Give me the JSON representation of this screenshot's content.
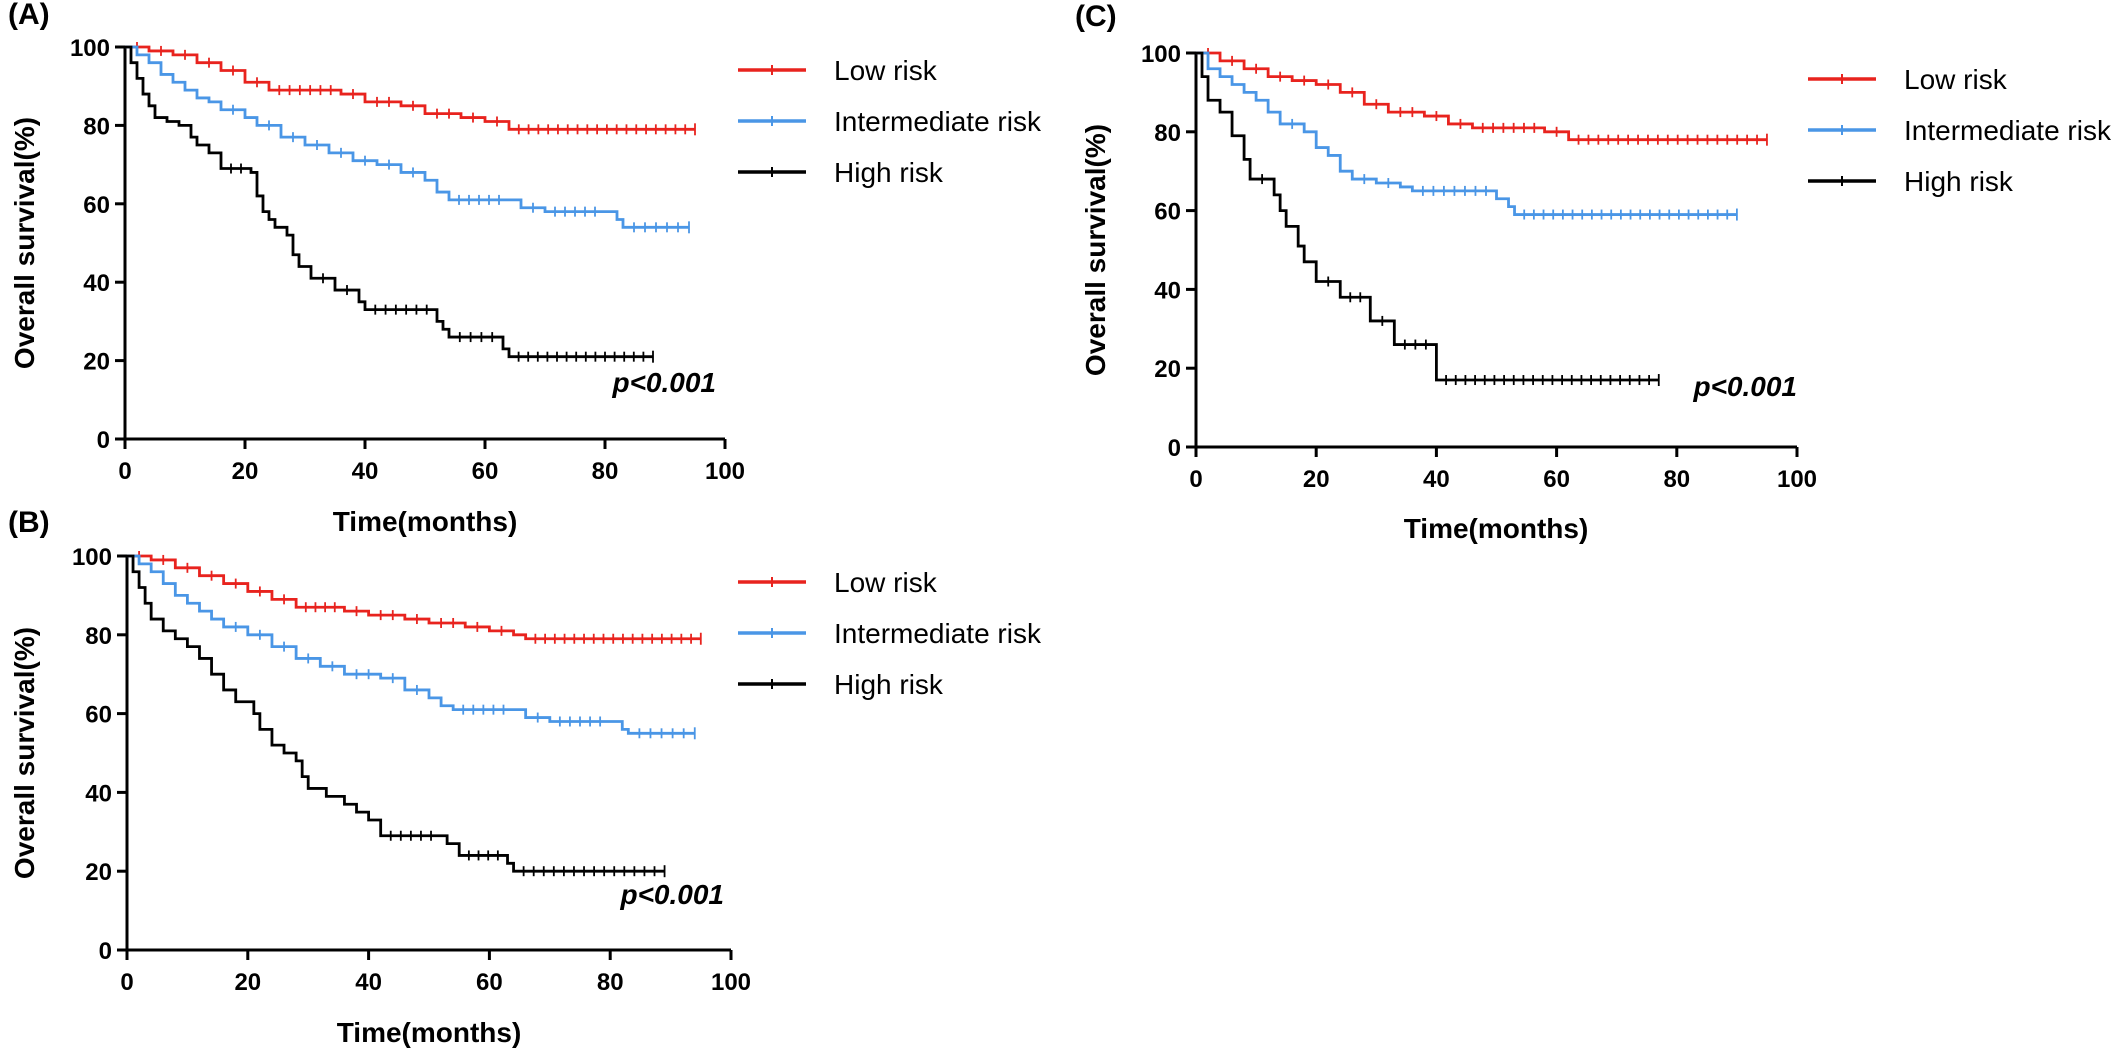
{
  "chart_data": [
    {
      "panel": "(A)",
      "type": "line",
      "xlabel": "Time(months)",
      "ylabel": "Overall survival(%)",
      "xlim": [
        0,
        100
      ],
      "ylim": [
        0,
        100
      ],
      "xticks": [
        "0",
        "20",
        "40",
        "60",
        "80",
        "100"
      ],
      "yticks": [
        "0",
        "20",
        "40",
        "60",
        "80",
        "100"
      ],
      "annotation": "p<0.001",
      "series": [
        {
          "name": "Low risk",
          "color": "#e8231e",
          "points": [
            [
              0,
              100
            ],
            [
              4,
              99
            ],
            [
              8,
              98
            ],
            [
              12,
              96
            ],
            [
              16,
              94
            ],
            [
              20,
              91
            ],
            [
              24,
              89
            ],
            [
              36,
              88
            ],
            [
              40,
              86
            ],
            [
              46,
              85
            ],
            [
              50,
              83
            ],
            [
              56,
              82
            ],
            [
              60,
              81
            ],
            [
              64,
              79
            ],
            [
              95,
              79
            ]
          ]
        },
        {
          "name": "Intermediate risk",
          "color": "#4a96e6",
          "points": [
            [
              0,
              100
            ],
            [
              2,
              98
            ],
            [
              4,
              96
            ],
            [
              6,
              93
            ],
            [
              8,
              91
            ],
            [
              10,
              89
            ],
            [
              12,
              87
            ],
            [
              14,
              86
            ],
            [
              16,
              84
            ],
            [
              20,
              82
            ],
            [
              22,
              80
            ],
            [
              26,
              77
            ],
            [
              30,
              75
            ],
            [
              34,
              73
            ],
            [
              38,
              71
            ],
            [
              42,
              70
            ],
            [
              46,
              68
            ],
            [
              50,
              66
            ],
            [
              52,
              63
            ],
            [
              54,
              61
            ],
            [
              64,
              61
            ],
            [
              66,
              59
            ],
            [
              70,
              58
            ],
            [
              80,
              58
            ],
            [
              82,
              56
            ],
            [
              83,
              54
            ],
            [
              94,
              54
            ]
          ]
        },
        {
          "name": "High risk",
          "color": "#000000",
          "points": [
            [
              0,
              100
            ],
            [
              1,
              96
            ],
            [
              2,
              92
            ],
            [
              3,
              88
            ],
            [
              4,
              85
            ],
            [
              5,
              82
            ],
            [
              7,
              81
            ],
            [
              9,
              80
            ],
            [
              11,
              77
            ],
            [
              12,
              75
            ],
            [
              14,
              73
            ],
            [
              16,
              69
            ],
            [
              21,
              68
            ],
            [
              22,
              62
            ],
            [
              23,
              58
            ],
            [
              24,
              56
            ],
            [
              25,
              54
            ],
            [
              27,
              52
            ],
            [
              28,
              47
            ],
            [
              29,
              44
            ],
            [
              31,
              41
            ],
            [
              35,
              38
            ],
            [
              39,
              35
            ],
            [
              40,
              33
            ],
            [
              52,
              30
            ],
            [
              53,
              28
            ],
            [
              54,
              26
            ],
            [
              63,
              23
            ],
            [
              64,
              21
            ],
            [
              88,
              21
            ]
          ]
        }
      ]
    },
    {
      "panel": "(B)",
      "type": "line",
      "xlabel": "Time(months)",
      "ylabel": "Overall survival(%)",
      "xlim": [
        0,
        100
      ],
      "ylim": [
        0,
        100
      ],
      "xticks": [
        "0",
        "20",
        "40",
        "60",
        "80",
        "100"
      ],
      "yticks": [
        "0",
        "20",
        "40",
        "60",
        "80",
        "100"
      ],
      "annotation": "p<0.001",
      "series": [
        {
          "name": "Low risk",
          "color": "#e8231e",
          "points": [
            [
              0,
              100
            ],
            [
              4,
              99
            ],
            [
              8,
              97
            ],
            [
              12,
              95
            ],
            [
              16,
              93
            ],
            [
              20,
              91
            ],
            [
              24,
              89
            ],
            [
              28,
              87
            ],
            [
              36,
              86
            ],
            [
              40,
              85
            ],
            [
              46,
              84
            ],
            [
              50,
              83
            ],
            [
              56,
              82
            ],
            [
              60,
              81
            ],
            [
              64,
              80
            ],
            [
              66,
              79
            ],
            [
              95,
              79
            ]
          ]
        },
        {
          "name": "Intermediate risk",
          "color": "#4a96e6",
          "points": [
            [
              0,
              100
            ],
            [
              2,
              98
            ],
            [
              4,
              96
            ],
            [
              6,
              93
            ],
            [
              8,
              90
            ],
            [
              10,
              88
            ],
            [
              12,
              86
            ],
            [
              14,
              84
            ],
            [
              16,
              82
            ],
            [
              20,
              80
            ],
            [
              24,
              77
            ],
            [
              28,
              74
            ],
            [
              32,
              72
            ],
            [
              36,
              70
            ],
            [
              42,
              69
            ],
            [
              46,
              66
            ],
            [
              50,
              64
            ],
            [
              52,
              62
            ],
            [
              54,
              61
            ],
            [
              64,
              61
            ],
            [
              66,
              59
            ],
            [
              70,
              58
            ],
            [
              80,
              58
            ],
            [
              82,
              56
            ],
            [
              83,
              55
            ],
            [
              94,
              55
            ]
          ]
        },
        {
          "name": "High risk",
          "color": "#000000",
          "points": [
            [
              0,
              100
            ],
            [
              1,
              96
            ],
            [
              2,
              92
            ],
            [
              3,
              88
            ],
            [
              4,
              84
            ],
            [
              6,
              81
            ],
            [
              8,
              79
            ],
            [
              10,
              77
            ],
            [
              12,
              74
            ],
            [
              14,
              70
            ],
            [
              16,
              66
            ],
            [
              18,
              63
            ],
            [
              21,
              60
            ],
            [
              22,
              56
            ],
            [
              24,
              52
            ],
            [
              26,
              50
            ],
            [
              28,
              48
            ],
            [
              29,
              44
            ],
            [
              30,
              41
            ],
            [
              33,
              39
            ],
            [
              36,
              37
            ],
            [
              38,
              35
            ],
            [
              40,
              33
            ],
            [
              42,
              29
            ],
            [
              52,
              29
            ],
            [
              53,
              27
            ],
            [
              55,
              24
            ],
            [
              63,
              22
            ],
            [
              64,
              20
            ],
            [
              89,
              20
            ]
          ]
        }
      ]
    },
    {
      "panel": "(C)",
      "type": "line",
      "xlabel": "Time(months)",
      "ylabel": "Overall survival(%)",
      "xlim": [
        0,
        100
      ],
      "ylim": [
        0,
        100
      ],
      "xticks": [
        "0",
        "20",
        "40",
        "60",
        "80",
        "100"
      ],
      "yticks": [
        "0",
        "20",
        "40",
        "60",
        "80",
        "100"
      ],
      "annotation": "p<0.001",
      "series": [
        {
          "name": "Low risk",
          "color": "#e8231e",
          "points": [
            [
              0,
              100
            ],
            [
              4,
              98
            ],
            [
              8,
              96
            ],
            [
              12,
              94
            ],
            [
              16,
              93
            ],
            [
              20,
              92
            ],
            [
              24,
              90
            ],
            [
              28,
              87
            ],
            [
              32,
              85
            ],
            [
              38,
              84
            ],
            [
              42,
              82
            ],
            [
              46,
              81
            ],
            [
              58,
              80
            ],
            [
              62,
              78
            ],
            [
              95,
              78
            ]
          ]
        },
        {
          "name": "Intermediate risk",
          "color": "#4a96e6",
          "points": [
            [
              0,
              100
            ],
            [
              2,
              96
            ],
            [
              4,
              94
            ],
            [
              6,
              92
            ],
            [
              8,
              90
            ],
            [
              10,
              88
            ],
            [
              12,
              85
            ],
            [
              14,
              82
            ],
            [
              18,
              80
            ],
            [
              20,
              76
            ],
            [
              22,
              74
            ],
            [
              24,
              70
            ],
            [
              26,
              68
            ],
            [
              30,
              67
            ],
            [
              34,
              66
            ],
            [
              36,
              65
            ],
            [
              50,
              63
            ],
            [
              52,
              61
            ],
            [
              53,
              59
            ],
            [
              90,
              59
            ]
          ]
        },
        {
          "name": "High risk",
          "color": "#000000",
          "points": [
            [
              0,
              100
            ],
            [
              1,
              94
            ],
            [
              2,
              88
            ],
            [
              4,
              85
            ],
            [
              6,
              79
            ],
            [
              8,
              73
            ],
            [
              9,
              68
            ],
            [
              13,
              64
            ],
            [
              14,
              60
            ],
            [
              15,
              56
            ],
            [
              17,
              51
            ],
            [
              18,
              47
            ],
            [
              20,
              42
            ],
            [
              24,
              38
            ],
            [
              29,
              32
            ],
            [
              33,
              26
            ],
            [
              40,
              17
            ],
            [
              77,
              17
            ]
          ]
        }
      ]
    }
  ]
}
